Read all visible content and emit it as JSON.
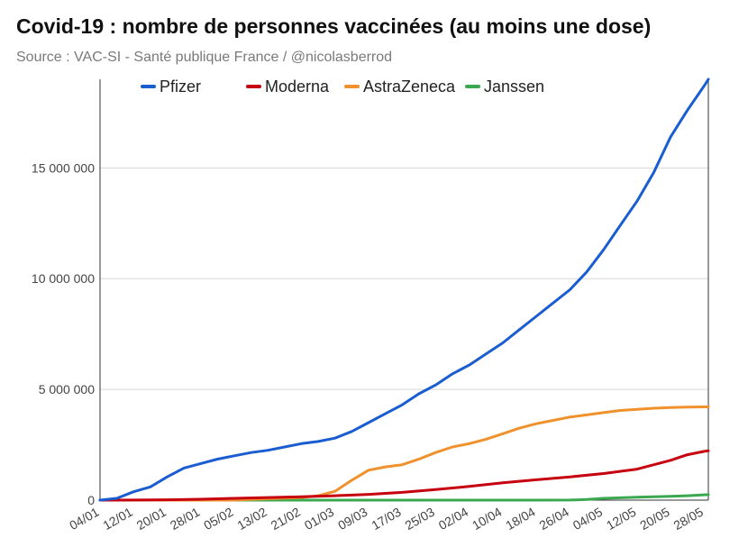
{
  "chart_data": {
    "type": "line",
    "title": "Covid-19 : nombre de personnes vaccinées (au moins une dose)",
    "subtitle": "Source : VAC-SI - Santé publique France / @nicolasberrod",
    "xlabel": "",
    "ylabel": "",
    "ylim": [
      0,
      19000000
    ],
    "yticks": [
      0,
      5000000,
      10000000,
      15000000
    ],
    "ytick_labels": [
      "0",
      "5 000 000",
      "10 000 000",
      "15 000 000"
    ],
    "xlim": [
      0,
      145
    ],
    "xticks": [
      0,
      8,
      16,
      24,
      32,
      40,
      48,
      56,
      64,
      72,
      80,
      88,
      96,
      104,
      112,
      120,
      128,
      136,
      144
    ],
    "xtick_labels": [
      "04/01",
      "12/01",
      "20/01",
      "28/01",
      "05/02",
      "13/02",
      "21/02",
      "01/03",
      "09/03",
      "17/03",
      "25/03",
      "02/04",
      "10/04",
      "18/04",
      "26/04",
      "04/05",
      "12/05",
      "20/05",
      "28/05"
    ],
    "grid": true,
    "legend_position": "top",
    "series": [
      {
        "name": "Pfizer",
        "color": "#1a5dd1",
        "x": [
          0,
          4,
          8,
          12,
          16,
          20,
          24,
          28,
          32,
          36,
          40,
          44,
          48,
          52,
          56,
          60,
          64,
          68,
          72,
          76,
          80,
          84,
          88,
          92,
          96,
          100,
          104,
          108,
          112,
          116,
          120,
          124,
          128,
          132,
          136,
          140,
          144,
          145
        ],
        "values": [
          0,
          80000,
          380000,
          600000,
          1050000,
          1450000,
          1650000,
          1850000,
          2000000,
          2150000,
          2250000,
          2400000,
          2550000,
          2650000,
          2800000,
          3100000,
          3500000,
          3900000,
          4300000,
          4800000,
          5200000,
          5700000,
          6100000,
          6600000,
          7100000,
          7700000,
          8300000,
          8900000,
          9500000,
          10300000,
          11300000,
          12400000,
          13500000,
          14800000,
          16400000,
          17600000,
          18700000,
          19000000
        ]
      },
      {
        "name": "Moderna",
        "color": "#c7000f",
        "x": [
          0,
          8,
          16,
          24,
          32,
          40,
          48,
          56,
          64,
          72,
          80,
          88,
          96,
          104,
          112,
          120,
          128,
          136,
          140,
          144,
          145
        ],
        "values": [
          0,
          5000,
          15000,
          40000,
          80000,
          120000,
          150000,
          200000,
          260000,
          350000,
          480000,
          620000,
          780000,
          920000,
          1050000,
          1200000,
          1400000,
          1800000,
          2050000,
          2200000,
          2230000
        ]
      },
      {
        "name": "AstraZeneca",
        "color": "#ef922e",
        "x": [
          0,
          32,
          40,
          48,
          52,
          56,
          60,
          64,
          68,
          72,
          76,
          80,
          84,
          88,
          92,
          96,
          100,
          104,
          108,
          112,
          116,
          120,
          124,
          128,
          132,
          136,
          140,
          144,
          145
        ],
        "values": [
          0,
          0,
          60000,
          120000,
          200000,
          400000,
          900000,
          1350000,
          1500000,
          1600000,
          1850000,
          2150000,
          2400000,
          2550000,
          2750000,
          3000000,
          3250000,
          3450000,
          3600000,
          3750000,
          3850000,
          3950000,
          4050000,
          4100000,
          4150000,
          4180000,
          4200000,
          4210000,
          4210000
        ]
      },
      {
        "name": "Janssen",
        "color": "#3aa84f",
        "x": [
          0,
          32,
          56,
          88,
          104,
          112,
          116,
          120,
          128,
          136,
          140,
          144,
          145
        ],
        "values": [
          0,
          0,
          0,
          0,
          0,
          5000,
          30000,
          80000,
          130000,
          170000,
          200000,
          240000,
          250000
        ]
      }
    ]
  }
}
